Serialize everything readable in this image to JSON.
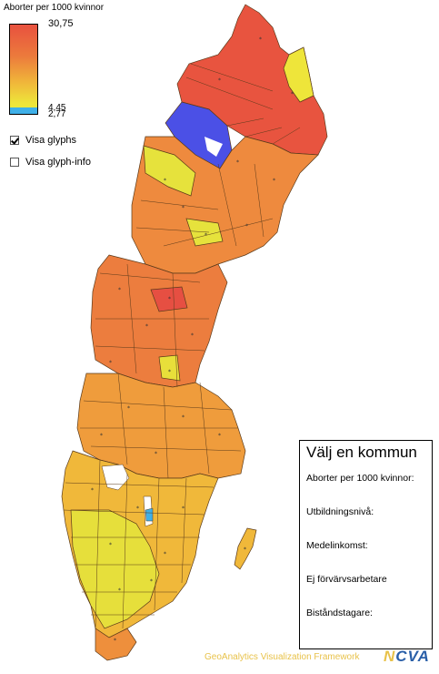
{
  "legend": {
    "title": "Aborter per 1000 kvinnor",
    "max": "30,75",
    "mid": "4,45",
    "min": "2,77",
    "colors": {
      "high": "#e8513f",
      "mid": "#f0b63a",
      "low": "#eee53a",
      "min": "#3fb0e8"
    }
  },
  "controls": {
    "glyphs_label": "Visa glyphs",
    "glyphs_checked": true,
    "glyph_info_label": "Visa glyph-info",
    "glyph_info_checked": false
  },
  "info_panel": {
    "title": "Välj en kommun",
    "fields": [
      "Aborter per 1000 kvinnor:",
      "Utbildningsnivå:",
      "Medelinkomst:",
      "Ej förvärvsarbetare",
      "Biståndstagare:"
    ]
  },
  "footer": {
    "framework": "GeoAnalytics Visualization Framework",
    "logo_n": "N",
    "logo_rest": "CVA"
  }
}
